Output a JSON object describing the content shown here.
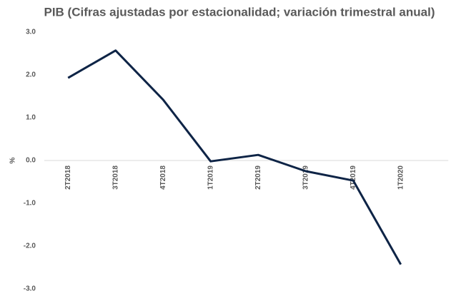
{
  "chart_data": {
    "type": "line",
    "title": "PIB (Cifras ajustadas por estacionalidad; variación trimestral anual)",
    "y_label": "%",
    "categories": [
      "2T2018",
      "3T2018",
      "4T2018",
      "1T2019",
      "2T2019",
      "3T2019",
      "4T2019",
      "1T2020"
    ],
    "series": [
      {
        "color": "#0e2446",
        "values": [
          1.93,
          2.57,
          1.42,
          -0.02,
          0.13,
          -0.25,
          -0.47,
          -2.43
        ]
      }
    ],
    "ylim": [
      -3,
      3
    ],
    "yticks": [
      {
        "value": 3,
        "label": "3.0"
      },
      {
        "value": 2,
        "label": "2.0"
      },
      {
        "value": 1,
        "label": "1.0"
      },
      {
        "value": 0,
        "label": "0.0"
      },
      {
        "value": -1,
        "label": "-1.0"
      },
      {
        "value": -2,
        "label": "-2.0"
      },
      {
        "value": -3,
        "label": "-3.0"
      }
    ],
    "grid": false
  }
}
